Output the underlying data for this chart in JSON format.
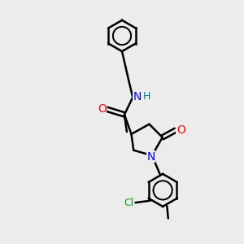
{
  "background_color": "#ececec",
  "bond_color": "#000000",
  "bond_width": 1.8,
  "atom_colors": {
    "N": "#0000ff",
    "O": "#ff0000",
    "Cl": "#00aa00",
    "C": "#000000",
    "H": "#008080"
  },
  "font_size": 9,
  "fig_size": [
    3.0,
    3.0
  ],
  "dpi": 100
}
